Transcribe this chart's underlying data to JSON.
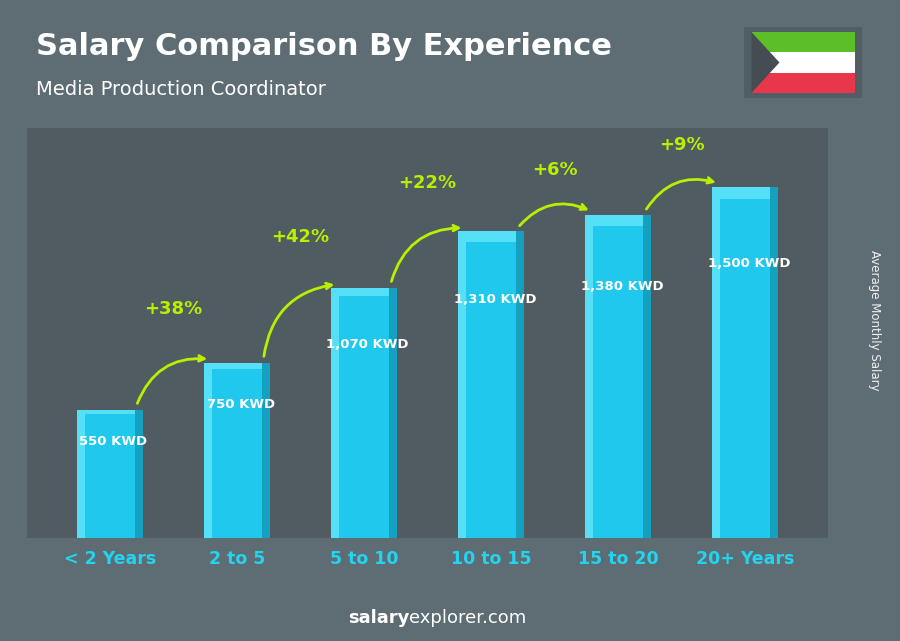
{
  "title": "Salary Comparison By Experience",
  "subtitle": "Media Production Coordinator",
  "categories": [
    "< 2 Years",
    "2 to 5",
    "5 to 10",
    "10 to 15",
    "15 to 20",
    "20+ Years"
  ],
  "values": [
    550,
    750,
    1070,
    1310,
    1380,
    1500
  ],
  "value_labels": [
    "550 KWD",
    "750 KWD",
    "1,070 KWD",
    "1,310 KWD",
    "1,380 KWD",
    "1,500 KWD"
  ],
  "pct_labels": [
    "+38%",
    "+42%",
    "+22%",
    "+6%",
    "+9%"
  ],
  "bar_color_main": "#1fc8ec",
  "bar_color_light": "#55e0f8",
  "bar_color_dark": "#16a0c0",
  "bg_color": "#5e6d74",
  "title_color": "#ffffff",
  "subtitle_color": "#ffffff",
  "value_label_color": "#ffffff",
  "pct_label_color": "#b8f000",
  "xticklabel_color": "#22d4f0",
  "arrow_color": "#b8f000",
  "watermark_bold": "salary",
  "watermark_rest": "explorer.com",
  "ylabel_text": "Average Monthly Salary",
  "ylim": [
    0,
    1750
  ],
  "bar_width": 0.52,
  "flag_colors": [
    "#5dbf28",
    "#ffffff",
    "#e8374a"
  ],
  "flag_black": "#454d53"
}
